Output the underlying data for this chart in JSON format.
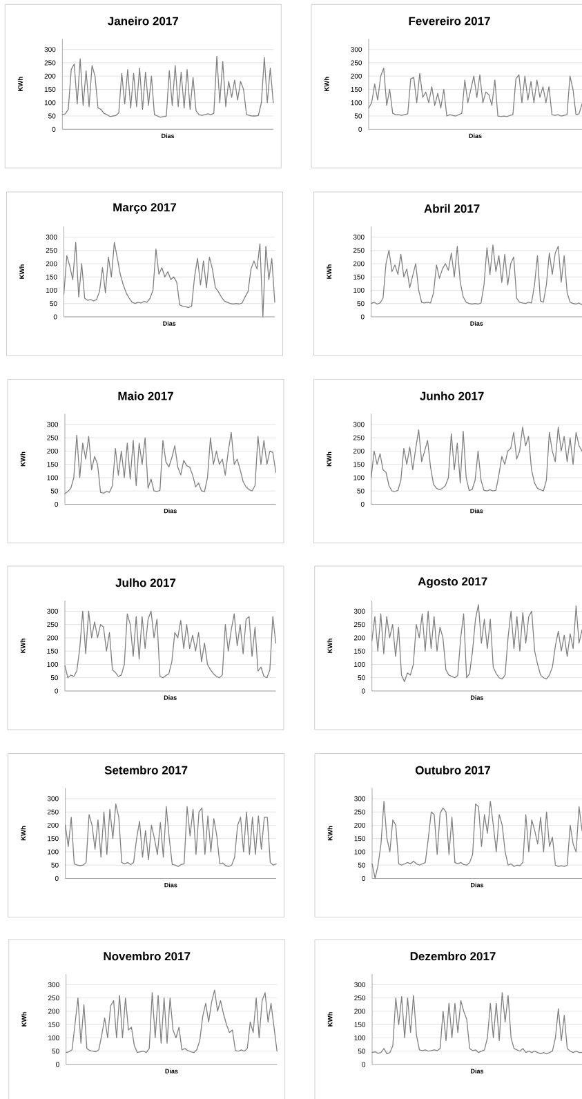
{
  "chart_data": [
    {
      "type": "line",
      "title": "Janeiro 2017",
      "xlabel": "Dias",
      "ylabel": "KWh",
      "color": "#808080",
      "grid": "y",
      "ylim": [
        0,
        340
      ],
      "yticks": [
        0,
        50,
        100,
        150,
        200,
        250,
        300
      ],
      "categories": [
        null,
        null,
        null,
        null,
        null,
        null,
        null,
        null,
        null,
        null,
        null,
        null,
        null,
        null,
        null,
        null,
        null,
        null,
        null,
        null,
        null,
        null,
        null,
        null,
        null,
        null,
        null,
        null,
        null,
        null,
        null,
        null,
        null,
        null,
        null,
        null,
        null,
        null,
        null,
        null,
        null,
        null,
        null,
        null,
        null,
        null,
        null,
        null,
        null,
        null,
        null,
        null,
        null,
        null,
        null,
        null,
        null,
        null,
        null,
        null,
        null,
        null,
        null,
        null,
        null,
        null,
        null,
        null,
        null,
        null,
        null,
        null
      ],
      "values": [
        55,
        58,
        75,
        225,
        245,
        95,
        265,
        90,
        220,
        85,
        240,
        200,
        80,
        75,
        60,
        55,
        48,
        50,
        52,
        62,
        210,
        95,
        225,
        80,
        210,
        85,
        230,
        75,
        215,
        90,
        200,
        55,
        50,
        45,
        48,
        50,
        220,
        90,
        240,
        85,
        215,
        80,
        225,
        75,
        195,
        70,
        55,
        52,
        55,
        58,
        55,
        60,
        275,
        100,
        255,
        85,
        180,
        120,
        185,
        110,
        180,
        150,
        55,
        52,
        50,
        50,
        52,
        100,
        270,
        100,
        230,
        100
      ]
    },
    {
      "type": "line",
      "title": "Fevereiro 2017",
      "xlabel": "Dias",
      "ylabel": "KWh",
      "color": "#808080",
      "grid": "y",
      "ylim": [
        0,
        340
      ],
      "yticks": [
        0,
        50,
        100,
        150,
        200,
        250,
        300
      ],
      "categories": [
        null,
        null,
        null,
        null,
        null,
        null,
        null,
        null,
        null,
        null,
        null,
        null,
        null,
        null,
        null,
        null,
        null,
        null,
        null,
        null,
        null,
        null,
        null,
        null,
        null,
        null,
        null,
        null,
        null,
        null,
        null,
        null,
        null,
        null,
        null,
        null,
        null,
        null,
        null,
        null,
        null,
        null,
        null,
        null,
        null,
        null,
        null,
        null,
        null,
        null,
        null,
        null,
        null,
        null,
        null,
        null,
        null,
        null,
        null,
        null,
        null,
        null,
        null,
        null,
        null,
        null,
        null,
        null,
        null,
        null,
        null,
        null
      ],
      "values": [
        80,
        100,
        170,
        110,
        200,
        230,
        90,
        150,
        60,
        55,
        55,
        52,
        55,
        58,
        190,
        195,
        100,
        210,
        120,
        140,
        100,
        160,
        90,
        135,
        80,
        150,
        50,
        55,
        52,
        50,
        55,
        60,
        185,
        100,
        150,
        200,
        120,
        205,
        100,
        140,
        130,
        90,
        185,
        50,
        48,
        50,
        48,
        52,
        55,
        190,
        205,
        100,
        200,
        110,
        180,
        100,
        185,
        120,
        160,
        100,
        160,
        55,
        52,
        55,
        50,
        52,
        55,
        200,
        150,
        55,
        58,
        95
      ]
    },
    {
      "type": "line",
      "title": "Março 2017",
      "xlabel": "Dias",
      "ylabel": "KWh",
      "color": "#808080",
      "grid": "y",
      "ylim": [
        0,
        340
      ],
      "yticks": [
        0,
        50,
        100,
        150,
        200,
        250,
        300
      ],
      "categories": [
        null,
        null,
        null,
        null,
        null,
        null,
        null,
        null,
        null,
        null,
        null,
        null,
        null,
        null,
        null,
        null,
        null,
        null,
        null,
        null,
        null,
        null,
        null,
        null,
        null,
        null,
        null,
        null,
        null,
        null,
        null,
        null,
        null,
        null,
        null,
        null,
        null,
        null,
        null,
        null,
        null,
        null,
        null,
        null,
        null,
        null,
        null,
        null,
        null,
        null,
        null,
        null,
        null,
        null,
        null,
        null,
        null,
        null,
        null,
        null,
        null,
        null,
        null,
        null,
        null,
        null,
        null,
        null,
        null,
        null,
        null,
        null
      ],
      "values": [
        85,
        230,
        190,
        140,
        280,
        75,
        200,
        70,
        62,
        65,
        60,
        65,
        95,
        185,
        90,
        225,
        150,
        280,
        220,
        160,
        120,
        90,
        70,
        55,
        50,
        55,
        52,
        58,
        55,
        70,
        100,
        255,
        160,
        185,
        150,
        170,
        140,
        150,
        130,
        45,
        40,
        38,
        35,
        40,
        150,
        220,
        120,
        210,
        110,
        225,
        180,
        110,
        95,
        75,
        60,
        55,
        50,
        48,
        50,
        48,
        52,
        75,
        95,
        180,
        210,
        180,
        275,
        0,
        265,
        140,
        220,
        55
      ]
    },
    {
      "type": "line",
      "title": "Abril 2017",
      "xlabel": "Dias",
      "ylabel": "KWh",
      "color": "#808080",
      "grid": "y",
      "ylim": [
        0,
        340
      ],
      "yticks": [
        0,
        50,
        100,
        150,
        200,
        250,
        300
      ],
      "categories": [
        null,
        null,
        null,
        null,
        null,
        null,
        null,
        null,
        null,
        null,
        null,
        null,
        null,
        null,
        null,
        null,
        null,
        null,
        null,
        null,
        null,
        null,
        null,
        null,
        null,
        null,
        null,
        null,
        null,
        null,
        null,
        null,
        null,
        null,
        null,
        null,
        null,
        null,
        null,
        null,
        null,
        null,
        null,
        null,
        null,
        null,
        null,
        null,
        null,
        null,
        null,
        null,
        null,
        null,
        null,
        null,
        null,
        null,
        null,
        null,
        null,
        null,
        null,
        null,
        null,
        null,
        null,
        null,
        null,
        null,
        null,
        null
      ],
      "values": [
        50,
        55,
        48,
        52,
        70,
        200,
        250,
        170,
        195,
        160,
        235,
        150,
        180,
        110,
        155,
        200,
        100,
        55,
        52,
        55,
        52,
        90,
        195,
        145,
        180,
        200,
        175,
        240,
        150,
        265,
        130,
        75,
        55,
        50,
        48,
        50,
        48,
        52,
        120,
        260,
        160,
        270,
        170,
        230,
        130,
        235,
        120,
        200,
        225,
        70,
        55,
        52,
        50,
        55,
        52,
        120,
        230,
        60,
        55,
        120,
        240,
        160,
        240,
        265,
        130,
        230,
        90,
        55,
        50,
        48,
        52,
        45
      ]
    },
    {
      "type": "line",
      "title": "Maio 2017",
      "xlabel": "Dias",
      "ylabel": "KWh",
      "color": "#808080",
      "grid": "y",
      "ylim": [
        0,
        340
      ],
      "yticks": [
        0,
        50,
        100,
        150,
        200,
        250,
        300
      ],
      "categories": [
        null,
        null,
        null,
        null,
        null,
        null,
        null,
        null,
        null,
        null,
        null,
        null,
        null,
        null,
        null,
        null,
        null,
        null,
        null,
        null,
        null,
        null,
        null,
        null,
        null,
        null,
        null,
        null,
        null,
        null,
        null,
        null,
        null,
        null,
        null,
        null,
        null,
        null,
        null,
        null,
        null,
        null,
        null,
        null,
        null,
        null,
        null,
        null,
        null,
        null,
        null,
        null,
        null,
        null,
        null,
        null,
        null,
        null,
        null,
        null,
        null,
        null,
        null,
        null,
        null,
        null,
        null,
        null,
        null,
        null,
        null,
        null
      ],
      "values": [
        40,
        48,
        60,
        100,
        260,
        100,
        230,
        170,
        255,
        130,
        180,
        150,
        45,
        42,
        48,
        45,
        70,
        210,
        110,
        200,
        100,
        230,
        95,
        240,
        70,
        230,
        150,
        250,
        60,
        95,
        50,
        48,
        52,
        240,
        160,
        140,
        175,
        220,
        140,
        110,
        165,
        145,
        140,
        110,
        65,
        80,
        50,
        48,
        100,
        250,
        150,
        200,
        150,
        170,
        110,
        200,
        270,
        150,
        170,
        130,
        85,
        65,
        55,
        50,
        70,
        255,
        150,
        240,
        150,
        200,
        195,
        120
      ]
    },
    {
      "type": "line",
      "title": "Junho 2017",
      "xlabel": "Dias",
      "ylabel": "KWh",
      "color": "#808080",
      "grid": "y",
      "ylim": [
        0,
        340
      ],
      "yticks": [
        0,
        50,
        100,
        150,
        200,
        250,
        300
      ],
      "categories": [
        null,
        null,
        null,
        null,
        null,
        null,
        null,
        null,
        null,
        null,
        null,
        null,
        null,
        null,
        null,
        null,
        null,
        null,
        null,
        null,
        null,
        null,
        null,
        null,
        null,
        null,
        null,
        null,
        null,
        null,
        null,
        null,
        null,
        null,
        null,
        null,
        null,
        null,
        null,
        null,
        null,
        null,
        null,
        null,
        null,
        null,
        null,
        null,
        null,
        null,
        null,
        null,
        null,
        null,
        null,
        null,
        null,
        null,
        null,
        null,
        null,
        null,
        null,
        null,
        null,
        null,
        null,
        null,
        null,
        null,
        null,
        null
      ],
      "values": [
        100,
        200,
        150,
        190,
        130,
        120,
        70,
        50,
        48,
        52,
        90,
        210,
        150,
        215,
        130,
        210,
        280,
        160,
        200,
        240,
        140,
        75,
        60,
        55,
        60,
        70,
        100,
        265,
        130,
        230,
        80,
        275,
        100,
        52,
        55,
        90,
        200,
        90,
        52,
        50,
        55,
        50,
        52,
        110,
        180,
        150,
        200,
        210,
        270,
        170,
        200,
        290,
        220,
        255,
        130,
        80,
        60,
        55,
        50,
        90,
        270,
        200,
        160,
        290,
        200,
        255,
        160,
        250,
        150,
        270,
        220,
        200
      ]
    },
    {
      "type": "line",
      "title": "Julho 2017",
      "xlabel": "Dias",
      "ylabel": "KWh",
      "color": "#808080",
      "grid": "y",
      "ylim": [
        0,
        340
      ],
      "yticks": [
        0,
        50,
        100,
        150,
        200,
        250,
        300
      ],
      "categories": [
        null,
        null,
        null,
        null,
        null,
        null,
        null,
        null,
        null,
        null,
        null,
        null,
        null,
        null,
        null,
        null,
        null,
        null,
        null,
        null,
        null,
        null,
        null,
        null,
        null,
        null,
        null,
        null,
        null,
        null,
        null,
        null,
        null,
        null,
        null,
        null,
        null,
        null,
        null,
        null,
        null,
        null,
        null,
        null,
        null,
        null,
        null,
        null,
        null,
        null,
        null,
        null,
        null,
        null,
        null,
        null,
        null,
        null,
        null,
        null,
        null,
        null,
        null,
        null,
        null,
        null,
        null,
        null,
        null,
        null,
        null,
        null
      ],
      "values": [
        95,
        50,
        60,
        55,
        75,
        160,
        300,
        140,
        300,
        200,
        260,
        200,
        250,
        240,
        150,
        220,
        80,
        70,
        55,
        60,
        100,
        290,
        250,
        130,
        280,
        120,
        280,
        160,
        270,
        300,
        200,
        270,
        55,
        50,
        58,
        65,
        110,
        220,
        200,
        265,
        160,
        250,
        160,
        210,
        150,
        220,
        110,
        180,
        100,
        80,
        65,
        55,
        50,
        60,
        250,
        150,
        230,
        290,
        170,
        250,
        140,
        270,
        280,
        130,
        240,
        75,
        90,
        55,
        50,
        80,
        280,
        180
      ]
    },
    {
      "type": "line",
      "title": "Agosto 2017",
      "xlabel": "Dias",
      "ylabel": "KWh",
      "color": "#808080",
      "grid": "y",
      "ylim": [
        0,
        340
      ],
      "yticks": [
        0,
        50,
        100,
        150,
        200,
        250,
        300
      ],
      "categories": [
        null,
        null,
        null,
        null,
        null,
        null,
        null,
        null,
        null,
        null,
        null,
        null,
        null,
        null,
        null,
        null,
        null,
        null,
        null,
        null,
        null,
        null,
        null,
        null,
        null,
        null,
        null,
        null,
        null,
        null,
        null,
        null,
        null,
        null,
        null,
        null,
        null,
        null,
        null,
        null,
        null,
        null,
        null,
        null,
        null,
        null,
        null,
        null,
        null,
        null,
        null,
        null,
        null,
        null,
        null,
        null,
        null,
        null,
        null,
        null,
        null,
        null,
        null,
        null,
        null,
        null,
        null,
        null,
        null,
        null,
        null,
        null
      ],
      "values": [
        190,
        280,
        150,
        290,
        140,
        280,
        200,
        250,
        130,
        240,
        60,
        35,
        68,
        60,
        100,
        250,
        200,
        290,
        150,
        300,
        160,
        280,
        150,
        240,
        200,
        80,
        60,
        55,
        50,
        58,
        200,
        290,
        50,
        65,
        150,
        270,
        325,
        180,
        270,
        160,
        270,
        90,
        65,
        50,
        45,
        60,
        200,
        300,
        160,
        280,
        150,
        295,
        180,
        280,
        300,
        150,
        100,
        60,
        50,
        45,
        60,
        90,
        170,
        225,
        150,
        210,
        130,
        215,
        160,
        320,
        180,
        230
      ]
    },
    {
      "type": "line",
      "title": "Setembro 2017",
      "xlabel": "Dias",
      "ylabel": "KWh",
      "color": "#808080",
      "grid": "y",
      "ylim": [
        0,
        340
      ],
      "yticks": [
        0,
        50,
        100,
        150,
        200,
        250,
        300
      ],
      "categories": [
        null,
        null,
        null,
        null,
        null,
        null,
        null,
        null,
        null,
        null,
        null,
        null,
        null,
        null,
        null,
        null,
        null,
        null,
        null,
        null,
        null,
        null,
        null,
        null,
        null,
        null,
        null,
        null,
        null,
        null,
        null,
        null,
        null,
        null,
        null,
        null,
        null,
        null,
        null,
        null,
        null,
        null,
        null,
        null,
        null,
        null,
        null,
        null,
        null,
        null,
        null,
        null,
        null,
        null,
        null,
        null,
        null,
        null,
        null,
        null,
        null,
        null,
        null,
        null,
        null,
        null,
        null,
        null,
        null,
        null,
        null,
        null
      ],
      "values": [
        200,
        120,
        230,
        55,
        50,
        48,
        50,
        60,
        240,
        200,
        110,
        220,
        80,
        250,
        90,
        260,
        150,
        280,
        230,
        60,
        55,
        60,
        52,
        60,
        150,
        215,
        80,
        180,
        70,
        200,
        150,
        90,
        210,
        80,
        270,
        150,
        52,
        50,
        45,
        52,
        55,
        270,
        160,
        260,
        90,
        250,
        265,
        90,
        235,
        100,
        225,
        160,
        55,
        58,
        48,
        45,
        50,
        80,
        200,
        230,
        100,
        250,
        90,
        230,
        90,
        235,
        110,
        230,
        230,
        60,
        50,
        55
      ]
    },
    {
      "type": "line",
      "title": "Outubro 2017",
      "xlabel": "Dias",
      "ylabel": "KWh",
      "color": "#808080",
      "grid": "y",
      "ylim": [
        0,
        340
      ],
      "yticks": [
        0,
        50,
        100,
        150,
        200,
        250,
        300
      ],
      "categories": [
        null,
        null,
        null,
        null,
        null,
        null,
        null,
        null,
        null,
        null,
        null,
        null,
        null,
        null,
        null,
        null,
        null,
        null,
        null,
        null,
        null,
        null,
        null,
        null,
        null,
        null,
        null,
        null,
        null,
        null,
        null,
        null,
        null,
        null,
        null,
        null,
        null,
        null,
        null,
        null,
        null,
        null,
        null,
        null,
        null,
        null,
        null,
        null,
        null,
        null,
        null,
        null,
        null,
        null,
        null,
        null,
        null,
        null,
        null,
        null,
        null,
        null,
        null,
        null,
        null,
        null,
        null,
        null,
        null,
        null,
        null,
        null
      ],
      "values": [
        55,
        0,
        50,
        130,
        290,
        150,
        100,
        220,
        200,
        55,
        50,
        55,
        60,
        55,
        65,
        55,
        50,
        55,
        60,
        150,
        250,
        240,
        90,
        245,
        265,
        250,
        90,
        230,
        60,
        55,
        60,
        52,
        50,
        60,
        90,
        280,
        270,
        120,
        240,
        170,
        290,
        200,
        100,
        240,
        200,
        100,
        50,
        55,
        45,
        50,
        48,
        60,
        240,
        100,
        220,
        180,
        130,
        230,
        100,
        250,
        120,
        155,
        50,
        45,
        48,
        45,
        50,
        200,
        130,
        100,
        270,
        180
      ]
    },
    {
      "type": "line",
      "title": "Novembro 2017",
      "xlabel": "Dias",
      "ylabel": "KWh",
      "color": "#808080",
      "grid": "y",
      "ylim": [
        0,
        340
      ],
      "yticks": [
        0,
        50,
        100,
        150,
        200,
        250,
        300
      ],
      "categories": [
        null,
        null,
        null,
        null,
        null,
        null,
        null,
        null,
        null,
        null,
        null,
        null,
        null,
        null,
        null,
        null,
        null,
        null,
        null,
        null,
        null,
        null,
        null,
        null,
        null,
        null,
        null,
        null,
        null,
        null,
        null,
        null,
        null,
        null,
        null,
        null,
        null,
        null,
        null,
        null,
        null,
        null,
        null,
        null,
        null,
        null,
        null,
        null,
        null,
        null,
        null,
        null,
        null,
        null,
        null,
        null,
        null,
        null,
        null,
        null,
        null,
        null,
        null,
        null,
        null,
        null,
        null,
        null,
        null,
        null,
        null,
        null
      ],
      "values": [
        45,
        48,
        55,
        150,
        250,
        80,
        225,
        60,
        52,
        50,
        48,
        55,
        110,
        175,
        100,
        220,
        240,
        100,
        260,
        100,
        250,
        130,
        140,
        70,
        45,
        48,
        50,
        45,
        60,
        270,
        100,
        260,
        80,
        250,
        80,
        250,
        130,
        100,
        140,
        55,
        60,
        52,
        48,
        45,
        55,
        90,
        180,
        230,
        160,
        235,
        280,
        200,
        240,
        190,
        150,
        120,
        130,
        52,
        50,
        55,
        50,
        60,
        160,
        120,
        250,
        100,
        240,
        270,
        160,
        230,
        140,
        50
      ]
    },
    {
      "type": "line",
      "title": "Dezembro 2017",
      "xlabel": "Dias",
      "ylabel": "KWh",
      "color": "#808080",
      "grid": "y",
      "ylim": [
        0,
        340
      ],
      "yticks": [
        0,
        50,
        100,
        150,
        200,
        250,
        300
      ],
      "categories": [
        null,
        null,
        null,
        null,
        null,
        null,
        null,
        null,
        null,
        null,
        null,
        null,
        null,
        null,
        null,
        null,
        null,
        null,
        null,
        null,
        null,
        null,
        null,
        null,
        null,
        null,
        null,
        null,
        null,
        null,
        null,
        null,
        null,
        null,
        null,
        null,
        null,
        null,
        null,
        null,
        null,
        null,
        null,
        null,
        null,
        null,
        null,
        null,
        null,
        null,
        null,
        null,
        null,
        null,
        null,
        null,
        null,
        null,
        null,
        null,
        null,
        null,
        null,
        null,
        null,
        null,
        null,
        null,
        null,
        null,
        null,
        null
      ],
      "values": [
        45,
        48,
        42,
        45,
        60,
        40,
        45,
        70,
        250,
        150,
        255,
        100,
        250,
        120,
        260,
        110,
        55,
        52,
        55,
        50,
        52,
        55,
        52,
        60,
        200,
        90,
        230,
        100,
        230,
        120,
        240,
        200,
        170,
        60,
        52,
        55,
        45,
        50,
        55,
        100,
        230,
        100,
        230,
        90,
        270,
        160,
        260,
        100,
        60,
        55,
        50,
        60,
        45,
        50,
        45,
        50,
        45,
        40,
        45,
        40,
        45,
        50,
        100,
        210,
        90,
        185,
        60,
        50,
        45,
        50,
        45,
        45
      ]
    }
  ]
}
